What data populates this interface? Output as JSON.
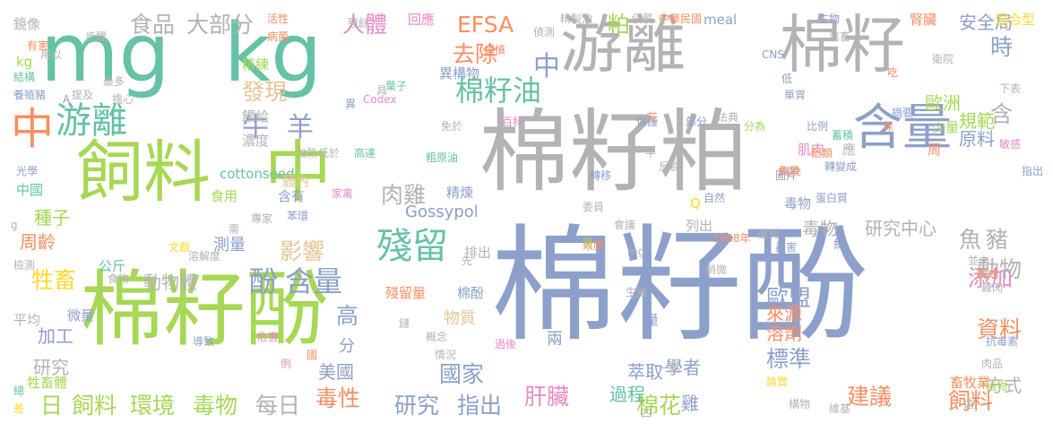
{
  "palette": {
    "teal": "#66c2a5",
    "orange": "#fc8d62",
    "blue": "#8da0cb",
    "pink": "#e78ac3",
    "green": "#a6d854",
    "yellow": "#ffd92f",
    "tan": "#e5c494",
    "gray": "#b3b3b3"
  },
  "words": [
    {
      "text": "棉籽酚",
      "color": "#8da0cb"
    },
    {
      "text": "棉籽粕",
      "color": "#b3b3b3"
    },
    {
      "text": "游離",
      "color": "#b3b3b3"
    },
    {
      "text": "棉籽",
      "color": "#b3b3b3"
    },
    {
      "text": "mg",
      "color": "#66c2a5"
    },
    {
      "text": "kg",
      "color": "#66c2a5"
    },
    {
      "text": "飼料",
      "color": "#a6d854"
    },
    {
      "text": "中",
      "color": "#a6d854"
    },
    {
      "text": "棉籽酚",
      "color": "#a6d854"
    },
    {
      "text": "含量",
      "color": "#8da0cb"
    },
    {
      "text": "中",
      "color": "#fc8d62"
    },
    {
      "text": "游離",
      "color": "#66c2a5"
    },
    {
      "text": "殘留",
      "color": "#66c2a5"
    },
    {
      "text": "含量",
      "color": "#8da0cb"
    },
    {
      "text": "酚",
      "color": "#8da0cb"
    },
    {
      "text": "棉籽油",
      "color": "#66c2a5"
    },
    {
      "text": "牛",
      "color": "#8da0cb"
    },
    {
      "text": "羊",
      "color": "#8da0cb"
    },
    {
      "text": "食品",
      "color": "#b3b3b3"
    },
    {
      "text": "大部分",
      "color": "#b3b3b3"
    },
    {
      "text": "EFSA",
      "color": "#fc8d62"
    },
    {
      "text": "去除",
      "color": "#fc8d62"
    },
    {
      "text": "時",
      "color": "#8da0cb"
    },
    {
      "text": "添加",
      "color": "#e78ac3"
    },
    {
      "text": "資料",
      "color": "#fc8d62"
    },
    {
      "text": "牲畜",
      "color": "#ffd92f"
    },
    {
      "text": "人體",
      "color": "#e78ac3"
    },
    {
      "text": "中",
      "color": "#8da0cb"
    },
    {
      "text": "粕",
      "color": "#a6d854"
    },
    {
      "text": "肝臟",
      "color": "#e78ac3"
    },
    {
      "text": "建議",
      "color": "#fc8d62"
    },
    {
      "text": "飼料",
      "color": "#a6d854"
    },
    {
      "text": "飼料",
      "color": "#fc8d62"
    },
    {
      "text": "毒性",
      "color": "#fc8d62"
    },
    {
      "text": "國家",
      "color": "#8da0cb"
    },
    {
      "text": "棉花",
      "color": "#a6d854"
    },
    {
      "text": "環境",
      "color": "#a6d854"
    },
    {
      "text": "毒物",
      "color": "#a6d854"
    },
    {
      "text": "日",
      "color": "#a6d854"
    },
    {
      "text": "研究",
      "color": "#8da0cb"
    },
    {
      "text": "指出",
      "color": "#8da0cb"
    },
    {
      "text": "每日",
      "color": "#b3b3b3"
    },
    {
      "text": "動物",
      "color": "#b3b3b3"
    },
    {
      "text": "影響",
      "color": "#e5c494"
    },
    {
      "text": "發現",
      "color": "#e5c494"
    },
    {
      "text": "肉雞",
      "color": "#b3b3b3"
    },
    {
      "text": "歐盟",
      "color": "#8da0cb"
    },
    {
      "text": "標準",
      "color": "#8da0cb"
    },
    {
      "text": "含",
      "color": "#b3b3b3"
    },
    {
      "text": "魚",
      "color": "#b3b3b3"
    },
    {
      "text": "豬",
      "color": "#b3b3b3"
    },
    {
      "text": "高",
      "color": "#8da0cb"
    },
    {
      "text": "分",
      "color": "#8da0cb"
    },
    {
      "text": "美國",
      "color": "#8da0cb"
    },
    {
      "text": "加工",
      "color": "#8da0cb"
    },
    {
      "text": "研究",
      "color": "#b3b3b3"
    },
    {
      "text": "周齡",
      "color": "#fc8d62"
    },
    {
      "text": "種子",
      "color": "#a6d854"
    },
    {
      "text": "中國",
      "color": "#66c2a5"
    },
    {
      "text": "動物體",
      "color": "#b3b3b3"
    },
    {
      "text": "毒物",
      "color": "#b3b3b3"
    },
    {
      "text": "研究中心",
      "color": "#b3b3b3"
    },
    {
      "text": "歐洲",
      "color": "#a6d854"
    },
    {
      "text": "規範",
      "color": "#a6d854"
    },
    {
      "text": "原料",
      "color": "#8da0cb"
    },
    {
      "text": "安全局",
      "color": "#8da0cb"
    },
    {
      "text": "方式",
      "color": "#b3b3b3"
    },
    {
      "text": "溶劑",
      "color": "#fc8d62"
    },
    {
      "text": "來源",
      "color": "#fc8d62"
    },
    {
      "text": "學者",
      "color": "#8da0cb"
    },
    {
      "text": "雞",
      "color": "#8da0cb"
    },
    {
      "text": "過程",
      "color": "#66c2a5"
    },
    {
      "text": "萃取",
      "color": "#8da0cb"
    },
    {
      "text": "cottonseed",
      "color": "#66c2a5"
    },
    {
      "text": "Gossypol",
      "color": "#8da0cb"
    },
    {
      "text": "精煉",
      "color": "#8da0cb"
    },
    {
      "text": "含有",
      "color": "#8da0cb"
    },
    {
      "text": "食用",
      "color": "#a6d854"
    },
    {
      "text": "濃度",
      "color": "#b3b3b3"
    },
    {
      "text": "餵給",
      "color": "#b3b3b3"
    },
    {
      "text": "精練",
      "color": "#a6d854"
    },
    {
      "text": "異構物",
      "color": "#8da0cb"
    },
    {
      "text": "回應",
      "color": "#e78ac3"
    },
    {
      "text": "meal",
      "color": "#8da0cb"
    },
    {
      "text": "腎臟",
      "color": "#fc8d62"
    },
    {
      "text": "混合型",
      "color": "#ffd92f"
    },
    {
      "text": "鏡像",
      "color": "#b3b3b3"
    },
    {
      "text": "kg",
      "color": "#a6d854"
    },
    {
      "text": "測量",
      "color": "#8da0cb"
    },
    {
      "text": "公斤",
      "color": "#66c2a5"
    },
    {
      "text": "體內",
      "color": "#e5c494"
    },
    {
      "text": "毒物",
      "color": "#8da0cb"
    },
    {
      "text": "列出",
      "color": "#b3b3b3"
    },
    {
      "text": "約",
      "color": "#8da0cb"
    },
    {
      "text": "肌肉",
      "color": "#e78ac3"
    },
    {
      "text": "應",
      "color": "#b3b3b3"
    },
    {
      "text": "少量",
      "color": "#a6d854"
    },
    {
      "text": "周",
      "color": "#fc8d62"
    },
    {
      "text": "平均",
      "color": "#b3b3b3"
    },
    {
      "text": "微量",
      "color": "#8da0cb"
    },
    {
      "text": "殘留量",
      "color": "#fc8d62"
    },
    {
      "text": "棉酚",
      "color": "#8da0cb"
    },
    {
      "text": "物質",
      "color": "#e5c494"
    },
    {
      "text": "排出",
      "color": "#b3b3b3"
    },
    {
      "text": "mg",
      "color": "#b3b3b3"
    },
    {
      "text": "1968年",
      "color": "#fc8d62"
    },
    {
      "text": "畜牧業",
      "color": "#fc8d62"
    },
    {
      "text": "牲畜體",
      "color": "#a6d854"
    },
    {
      "text": "抗毒素",
      "color": "#8da0cb"
    },
    {
      "text": "蛋白質",
      "color": "#8da0cb"
    },
    {
      "text": "轉變成",
      "color": "#8da0cb"
    },
    {
      "text": "蓄積",
      "color": "#66c2a5"
    },
    {
      "text": "聯晚",
      "color": "#b3b3b3"
    },
    {
      "text": "圖片",
      "color": "#8da0cb"
    },
    {
      "text": "魚類",
      "color": "#fc8d62"
    },
    {
      "text": "稍微",
      "color": "#b3b3b3"
    },
    {
      "text": "效應",
      "color": "#fc8d62"
    },
    {
      "text": "先",
      "color": "#b3b3b3"
    },
    {
      "text": "生殖",
      "color": "#b3b3b3"
    },
    {
      "text": "量",
      "color": "#8da0cb"
    },
    {
      "text": "兩",
      "color": "#8da0cb"
    },
    {
      "text": "一點",
      "color": "#b3b3b3"
    },
    {
      "text": "Q",
      "color": "#ffd92f"
    },
    {
      "text": "苯環",
      "color": "#8da0cb"
    },
    {
      "text": "家禽",
      "color": "#e78ac3"
    },
    {
      "text": "專家",
      "color": "#b3b3b3"
    },
    {
      "text": "文獻",
      "color": "#ffd92f"
    },
    {
      "text": "溶解度",
      "color": "#b3b3b3"
    },
    {
      "text": "食物",
      "color": "#b3b3b3"
    },
    {
      "text": "危害",
      "color": "#e78ac3"
    },
    {
      "text": "概念",
      "color": "#b3b3b3"
    },
    {
      "text": "情況",
      "color": "#b3b3b3"
    },
    {
      "text": "過後",
      "color": "#e78ac3"
    },
    {
      "text": "導致",
      "color": "#8da0cb"
    },
    {
      "text": "例",
      "color": "#e78ac3"
    },
    {
      "text": "總",
      "color": "#66c2a5"
    },
    {
      "text": "差",
      "color": "#ffd92f"
    },
    {
      "text": "檢測",
      "color": "#b3b3b3"
    },
    {
      "text": "光學",
      "color": "#8da0cb"
    },
    {
      "text": "養殖豬",
      "color": "#8da0cb"
    },
    {
      "text": "結構",
      "color": "#66c2a5"
    },
    {
      "text": "用以",
      "color": "#b3b3b3"
    },
    {
      "text": "有害",
      "color": "#fc8d62"
    },
    {
      "text": "步驟",
      "color": "#b3b3b3"
    },
    {
      "text": "活性",
      "color": "#fc8d62"
    },
    {
      "text": "病菌",
      "color": "#fc8d62"
    },
    {
      "text": "殘餘",
      "color": "#b3b3b3"
    },
    {
      "text": "謹慎",
      "color": "#fc8d62"
    },
    {
      "text": "偵測",
      "color": "#b3b3b3"
    },
    {
      "text": "精製油",
      "color": "#b3b3b3"
    },
    {
      "text": "侵襲",
      "color": "#b3b3b3"
    },
    {
      "text": "中華民國",
      "color": "#fc8d62"
    },
    {
      "text": "生物",
      "color": "#8da0cb"
    },
    {
      "text": "禽畜",
      "color": "#b3b3b3"
    },
    {
      "text": "衛院",
      "color": "#b3b3b3"
    },
    {
      "text": "CNS",
      "color": "#8da0cb"
    },
    {
      "text": "低",
      "color": "#8da0cb"
    },
    {
      "text": "吃",
      "color": "#fc8d62"
    },
    {
      "text": "單胃",
      "color": "#8da0cb"
    },
    {
      "text": "下表",
      "color": "#b3b3b3"
    },
    {
      "text": "摘要",
      "color": "#8da0cb"
    },
    {
      "text": "保",
      "color": "#fc8d62"
    },
    {
      "text": "敏感",
      "color": "#e78ac3"
    },
    {
      "text": "指出",
      "color": "#8da0cb"
    },
    {
      "text": "比例",
      "color": "#8da0cb"
    },
    {
      "text": "酚類",
      "color": "#fc8d62"
    },
    {
      "text": "分為",
      "color": "#a6d854"
    },
    {
      "text": "法典",
      "color": "#b3b3b3"
    },
    {
      "text": "部分",
      "color": "#8da0cb"
    },
    {
      "text": "保護",
      "color": "#8da0cb"
    },
    {
      "text": "花",
      "color": "#fc8d62"
    },
    {
      "text": "百科",
      "color": "#e78ac3"
    },
    {
      "text": "免於",
      "color": "#b3b3b3"
    },
    {
      "text": "粗原油",
      "color": "#66c2a5"
    },
    {
      "text": "Codex",
      "color": "#e78ac3"
    },
    {
      "text": "具",
      "color": "#b3b3b3"
    },
    {
      "text": "異",
      "color": "#8da0cb"
    },
    {
      "text": "葉子",
      "color": "#66c2a5"
    },
    {
      "text": "加熱",
      "color": "#b3b3b3"
    },
    {
      "text": "低於",
      "color": "#b3b3b3"
    },
    {
      "text": "高達",
      "color": "#66c2a5"
    },
    {
      "text": "轉移",
      "color": "#8da0cb"
    },
    {
      "text": "牛",
      "color": "#b3b3b3"
    },
    {
      "text": "反芻",
      "color": "#b3b3b3"
    },
    {
      "text": "會議",
      "color": "#b3b3b3"
    },
    {
      "text": "委員",
      "color": "#b3b3b3"
    },
    {
      "text": "莖",
      "color": "#a6d854"
    },
    {
      "text": "自然",
      "color": "#8da0cb"
    },
    {
      "text": "進到",
      "color": "#b3b3b3"
    },
    {
      "text": "蟲害",
      "color": "#8da0cb"
    },
    {
      "text": "並未",
      "color": "#b3b3b3"
    },
    {
      "text": "製成",
      "color": "#fc8d62"
    },
    {
      "text": "雞肉",
      "color": "#b3b3b3"
    },
    {
      "text": "肉品",
      "color": "#b3b3b3"
    },
    {
      "text": "植物",
      "color": "#a6d854"
    },
    {
      "text": "遠",
      "color": "#b3b3b3"
    },
    {
      "text": "維基",
      "color": "#b3b3b3"
    },
    {
      "text": "構物",
      "color": "#b3b3b3"
    },
    {
      "text": "四",
      "color": "#b3b3b3"
    },
    {
      "text": "鏈",
      "color": "#b3b3b3"
    },
    {
      "text": "國",
      "color": "#fc8d62"
    },
    {
      "text": "需",
      "color": "#b3b3b3"
    },
    {
      "text": "提及",
      "color": "#b3b3b3"
    },
    {
      "text": "最多",
      "color": "#b3b3b3"
    },
    {
      "text": "擔心",
      "color": "#b3b3b3"
    },
    {
      "text": "A",
      "color": "#8da0cb"
    },
    {
      "text": "g",
      "color": "#b3b3b3"
    },
    {
      "text": "論實",
      "color": "#ffd92f"
    }
  ]
}
